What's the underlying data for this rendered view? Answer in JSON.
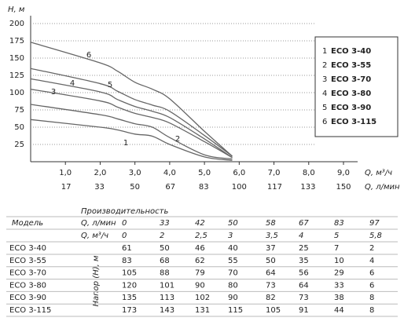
{
  "chart_data": {
    "type": "line",
    "y_label": "H, м",
    "x_label": "Q, м³/ч",
    "x2_label": "Q, л/мин",
    "xlim": [
      0,
      9
    ],
    "xticks": [
      {
        "value": 1,
        "label": "1,0"
      },
      {
        "value": 2,
        "label": "2,0"
      },
      {
        "value": 3,
        "label": "3,0"
      },
      {
        "value": 4,
        "label": "4,0"
      },
      {
        "value": 5,
        "label": "5,0"
      },
      {
        "value": 6,
        "label": "6,0"
      },
      {
        "value": 7,
        "label": "7,0"
      },
      {
        "value": 8,
        "label": "8,0"
      },
      {
        "value": 9,
        "label": "9,0"
      }
    ],
    "x2lim": [
      0,
      150
    ],
    "x2ticks": [
      17,
      33,
      50,
      67,
      83,
      100,
      117,
      133,
      150
    ],
    "ylim": [
      0,
      200
    ],
    "yticks": [
      25,
      50,
      75,
      100,
      125,
      150,
      175,
      200
    ],
    "grid": true,
    "x": [
      0,
      2,
      2.5,
      3,
      3.5,
      4,
      5,
      5.8
    ],
    "series": [
      {
        "label": "1",
        "name": "ECO 3-40",
        "color": "#666666",
        "values": [
          61,
          50,
          46,
          40,
          37,
          25,
          7,
          2
        ]
      },
      {
        "label": "2",
        "name": "ECO 3-55",
        "color": "#666666",
        "values": [
          83,
          68,
          62,
          55,
          50,
          35,
          10,
          4
        ]
      },
      {
        "label": "3",
        "name": "ECO 3-70",
        "color": "#666666",
        "values": [
          105,
          88,
          79,
          70,
          64,
          56,
          29,
          6
        ]
      },
      {
        "label": "4",
        "name": "ECO 3-80",
        "color": "#666666",
        "values": [
          120,
          101,
          90,
          80,
          73,
          64,
          33,
          6
        ]
      },
      {
        "label": "5",
        "name": "ECO 3-90",
        "color": "#666666",
        "values": [
          135,
          113,
          102,
          90,
          82,
          73,
          38,
          8
        ]
      },
      {
        "label": "6",
        "name": "ECO 3-115",
        "color": "#666666",
        "values": [
          173,
          143,
          131,
          115,
          105,
          91,
          44,
          8
        ]
      }
    ]
  },
  "table": {
    "title": "Производительность",
    "model_header": "Модель",
    "head_label": "Напор (Н), м",
    "flow_rows": [
      {
        "label": "Q, л/мин",
        "values": [
          "0",
          "33",
          "42",
          "50",
          "58",
          "67",
          "83",
          "97"
        ]
      },
      {
        "label": "Q, м³/ч",
        "values": [
          "0",
          "2",
          "2,5",
          "3",
          "3,5",
          "4",
          "5",
          "5,8"
        ]
      }
    ],
    "rows": [
      {
        "model": "ECO 3-40",
        "values": [
          "61",
          "50",
          "46",
          "40",
          "37",
          "25",
          "7",
          "2"
        ]
      },
      {
        "model": "ECO 3-55",
        "values": [
          "83",
          "68",
          "62",
          "55",
          "50",
          "35",
          "10",
          "4"
        ]
      },
      {
        "model": "ECO 3-70",
        "values": [
          "105",
          "88",
          "79",
          "70",
          "64",
          "56",
          "29",
          "6"
        ]
      },
      {
        "model": "ECO 3-80",
        "values": [
          "120",
          "101",
          "90",
          "80",
          "73",
          "64",
          "33",
          "6"
        ]
      },
      {
        "model": "ECO 3-90",
        "values": [
          "135",
          "113",
          "102",
          "90",
          "82",
          "73",
          "38",
          "8"
        ]
      },
      {
        "model": "ECO 3-115",
        "values": [
          "173",
          "143",
          "131",
          "115",
          "105",
          "91",
          "44",
          "8"
        ]
      }
    ]
  }
}
